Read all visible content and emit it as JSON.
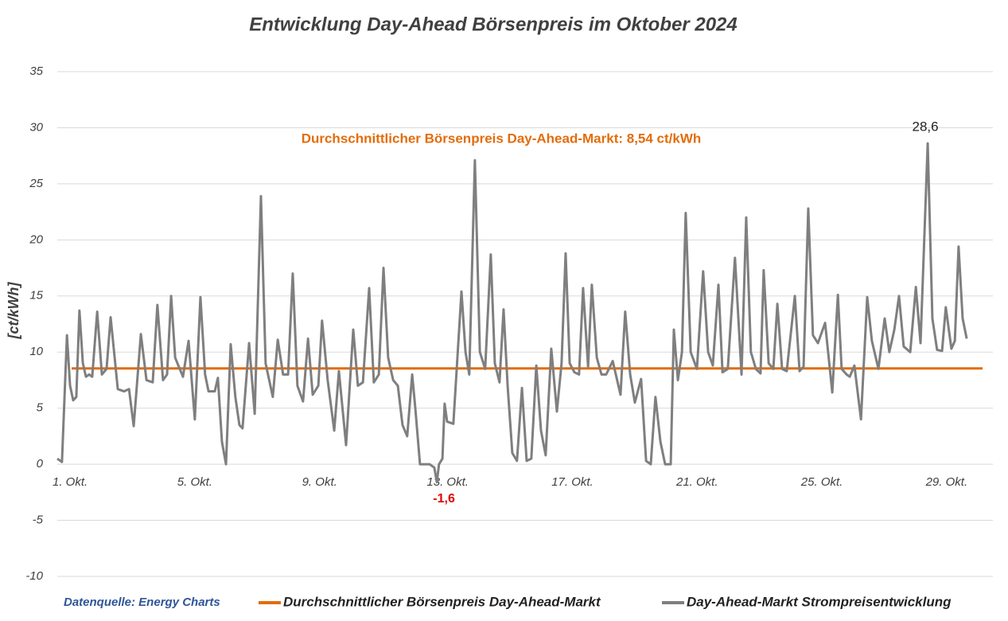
{
  "chart_data": {
    "type": "line",
    "title": "Entwicklung Day-Ahead Börsenpreis im Oktober 2024",
    "y_label": "[ct/kWh]",
    "source": "Datenquelle: Energy Charts",
    "average_label": "Durchschnittlicher Börsenpreis Day-Ahead-Markt: 8,54 ct/kWh",
    "max_label": "28,6",
    "min_label": "-1,6",
    "xlim": [
      1,
      31
    ],
    "xticks": [
      {
        "value": 1,
        "label": "1. Okt."
      },
      {
        "value": 5,
        "label": "5. Okt."
      },
      {
        "value": 9,
        "label": "9. Okt."
      },
      {
        "value": 13,
        "label": "13. Okt."
      },
      {
        "value": 17,
        "label": "17. Okt."
      },
      {
        "value": 21,
        "label": "21. Okt."
      },
      {
        "value": 25,
        "label": "25. Okt."
      },
      {
        "value": 29,
        "label": "29. Okt."
      }
    ],
    "ylim": [
      -10,
      35
    ],
    "yticks": [
      -10,
      -5,
      0,
      5,
      10,
      15,
      20,
      25,
      30,
      35
    ],
    "grid": true,
    "legend": "bottom",
    "series": [
      {
        "name": "Durchschnittlicher Börsenpreis Day-Ahead-Markt",
        "color": "#e36c0a",
        "values": [
          8.54
        ]
      },
      {
        "name": "Day-Ahead-Markt Strompreisentwicklung",
        "color": "#7f7f7f",
        "x": [
          1.0,
          1.15,
          1.31,
          1.41,
          1.51,
          1.61,
          1.71,
          1.82,
          1.92,
          2.02,
          2.12,
          2.28,
          2.43,
          2.58,
          2.71,
          2.84,
          2.94,
          3.14,
          3.3,
          3.45,
          3.68,
          3.86,
          4.06,
          4.21,
          4.39,
          4.52,
          4.65,
          4.78,
          5.03,
          5.21,
          5.41,
          5.59,
          5.74,
          5.85,
          6.05,
          6.15,
          6.28,
          6.41,
          6.56,
          6.71,
          6.84,
          6.94,
          7.15,
          7.33,
          7.53,
          7.68,
          7.91,
          8.07,
          8.24,
          8.4,
          8.55,
          8.7,
          8.88,
          9.04,
          9.19,
          9.37,
          9.49,
          9.67,
          9.88,
          10.03,
          10.26,
          10.49,
          10.64,
          10.8,
          11.0,
          11.15,
          11.31,
          11.46,
          11.61,
          11.77,
          11.92,
          12.07,
          12.22,
          12.38,
          12.48,
          12.63,
          12.94,
          13.09,
          13.17,
          13.24,
          13.35,
          13.42,
          13.5,
          13.7,
          13.96,
          14.09,
          14.21,
          14.39,
          14.55,
          14.72,
          14.9,
          15.03,
          15.18,
          15.31,
          15.44,
          15.59,
          15.74,
          15.9,
          16.05,
          16.2,
          16.36,
          16.51,
          16.66,
          16.84,
          17.02,
          17.17,
          17.3,
          17.43,
          17.58,
          17.73,
          17.86,
          18.02,
          18.14,
          18.3,
          18.45,
          18.6,
          18.81,
          19.06,
          19.21,
          19.37,
          19.52,
          19.72,
          19.88,
          20.03,
          20.18,
          20.34,
          20.49,
          20.67,
          20.77,
          20.9,
          21.03,
          21.15,
          21.31,
          21.51,
          21.71,
          21.87,
          22.02,
          22.2,
          22.33,
          22.5,
          22.73,
          22.94,
          23.09,
          23.24,
          23.4,
          23.55,
          23.65,
          23.81,
          23.96,
          24.09,
          24.24,
          24.39,
          24.65,
          24.8,
          24.93,
          25.08,
          25.23,
          25.39,
          25.62,
          25.85,
          26.03,
          26.15,
          26.31,
          26.41,
          26.56,
          26.77,
          26.97,
          27.12,
          27.33,
          27.53,
          27.68,
          27.84,
          27.99,
          28.14,
          28.35,
          28.53,
          28.68,
          28.91,
          29.06,
          29.21,
          29.37,
          29.49,
          29.67,
          29.78,
          29.9,
          30.03,
          30.16
        ],
        "values": [
          0.5,
          0.2,
          11.5,
          7,
          5.7,
          6,
          13.7,
          9,
          7.8,
          8,
          7.8,
          13.6,
          8,
          8.5,
          13.1,
          9.5,
          6.7,
          6.5,
          6.7,
          3.4,
          11.6,
          7.5,
          7.3,
          14.2,
          7.5,
          8,
          15,
          9.5,
          7.8,
          11,
          4,
          14.9,
          8,
          6.5,
          6.5,
          7.7,
          2,
          0,
          10.7,
          6,
          3.5,
          3.2,
          10.8,
          4.5,
          23.9,
          9,
          6,
          11.1,
          8,
          8,
          17,
          7,
          5.6,
          11.2,
          6.2,
          7,
          12.8,
          7.5,
          3,
          8.3,
          1.7,
          12,
          7,
          7.3,
          15.7,
          7.3,
          8,
          17.5,
          9.5,
          7.5,
          7,
          3.5,
          2.5,
          8,
          5,
          0,
          0,
          -0.3,
          -1.6,
          0,
          0.5,
          5.4,
          3.8,
          3.6,
          15.4,
          10,
          8,
          27.1,
          10,
          8.5,
          18.7,
          9,
          7.3,
          13.8,
          7,
          1,
          0.3,
          6.8,
          0.3,
          0.5,
          8.8,
          3,
          0.8,
          10.3,
          4.7,
          9,
          18.8,
          9,
          8.2,
          8,
          15.7,
          8.7,
          16,
          9.5,
          8,
          8,
          9.2,
          6.2,
          13.6,
          8,
          5.5,
          7.6,
          0.3,
          0,
          6,
          2,
          0,
          0,
          12,
          7.5,
          10,
          22.4,
          10,
          8.5,
          17.2,
          10,
          8.8,
          16,
          8.2,
          8.5,
          18.4,
          8,
          22,
          10,
          8.5,
          8.1,
          17.3,
          9,
          8.5,
          14.3,
          8.5,
          8.3,
          15,
          8.3,
          8.7,
          22.8,
          11.5,
          10.8,
          12.6,
          6.4,
          15.1,
          8.5,
          8,
          7.8,
          8.8,
          4,
          14.9,
          11,
          8.5,
          13,
          10,
          12,
          15,
          10.5,
          10,
          15.8,
          10.8,
          28.6,
          13,
          10.2,
          10.1,
          14,
          10.3,
          11,
          19.4,
          13,
          11.2
        ]
      }
    ]
  }
}
